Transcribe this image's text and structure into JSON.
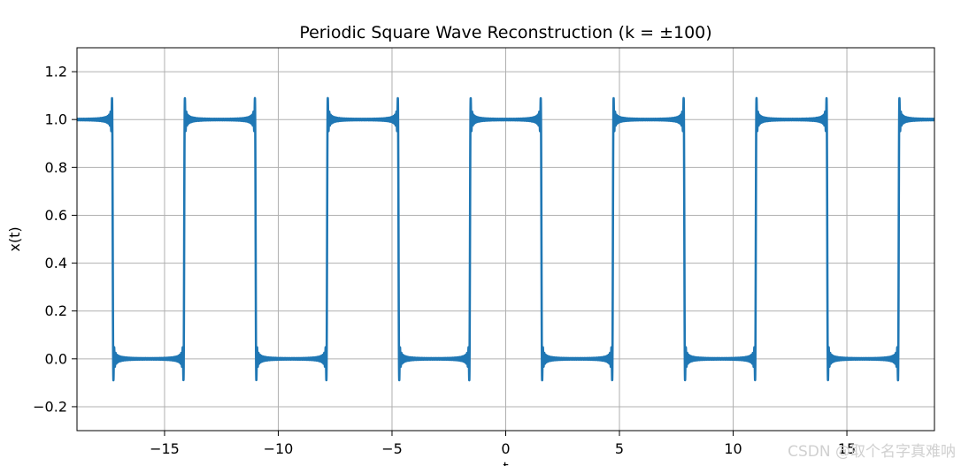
{
  "chart_data": {
    "type": "line",
    "title": "Periodic Square Wave Reconstruction (k = ±100)",
    "xlabel": "t",
    "ylabel": "x(t)",
    "xlim": [
      -18.85,
      18.85
    ],
    "ylim": [
      -0.3,
      1.3
    ],
    "xticks": [
      -15,
      -10,
      -5,
      0,
      5,
      10,
      15
    ],
    "xtick_labels": [
      "−15",
      "−10",
      "−5",
      "0",
      "5",
      "10",
      "15"
    ],
    "yticks": [
      -0.2,
      0.0,
      0.2,
      0.4,
      0.6,
      0.8,
      1.0,
      1.2
    ],
    "ytick_labels": [
      "−0.2",
      "0.0",
      "0.2",
      "0.4",
      "0.6",
      "0.8",
      "1.0",
      "1.2"
    ],
    "grid": true,
    "series": [
      {
        "function": "Fourier partial sum of a square wave, harmonics k = -100 to 100",
        "period": 6.2832,
        "duty_half_width": 1.5708,
        "high_value": 1.0,
        "low_value": 0.0,
        "overshoot_peak": 1.09,
        "undershoot_trough": -0.09,
        "color": "#1f77b4"
      }
    ]
  },
  "watermark": "CSDN @取个名字真难呐"
}
